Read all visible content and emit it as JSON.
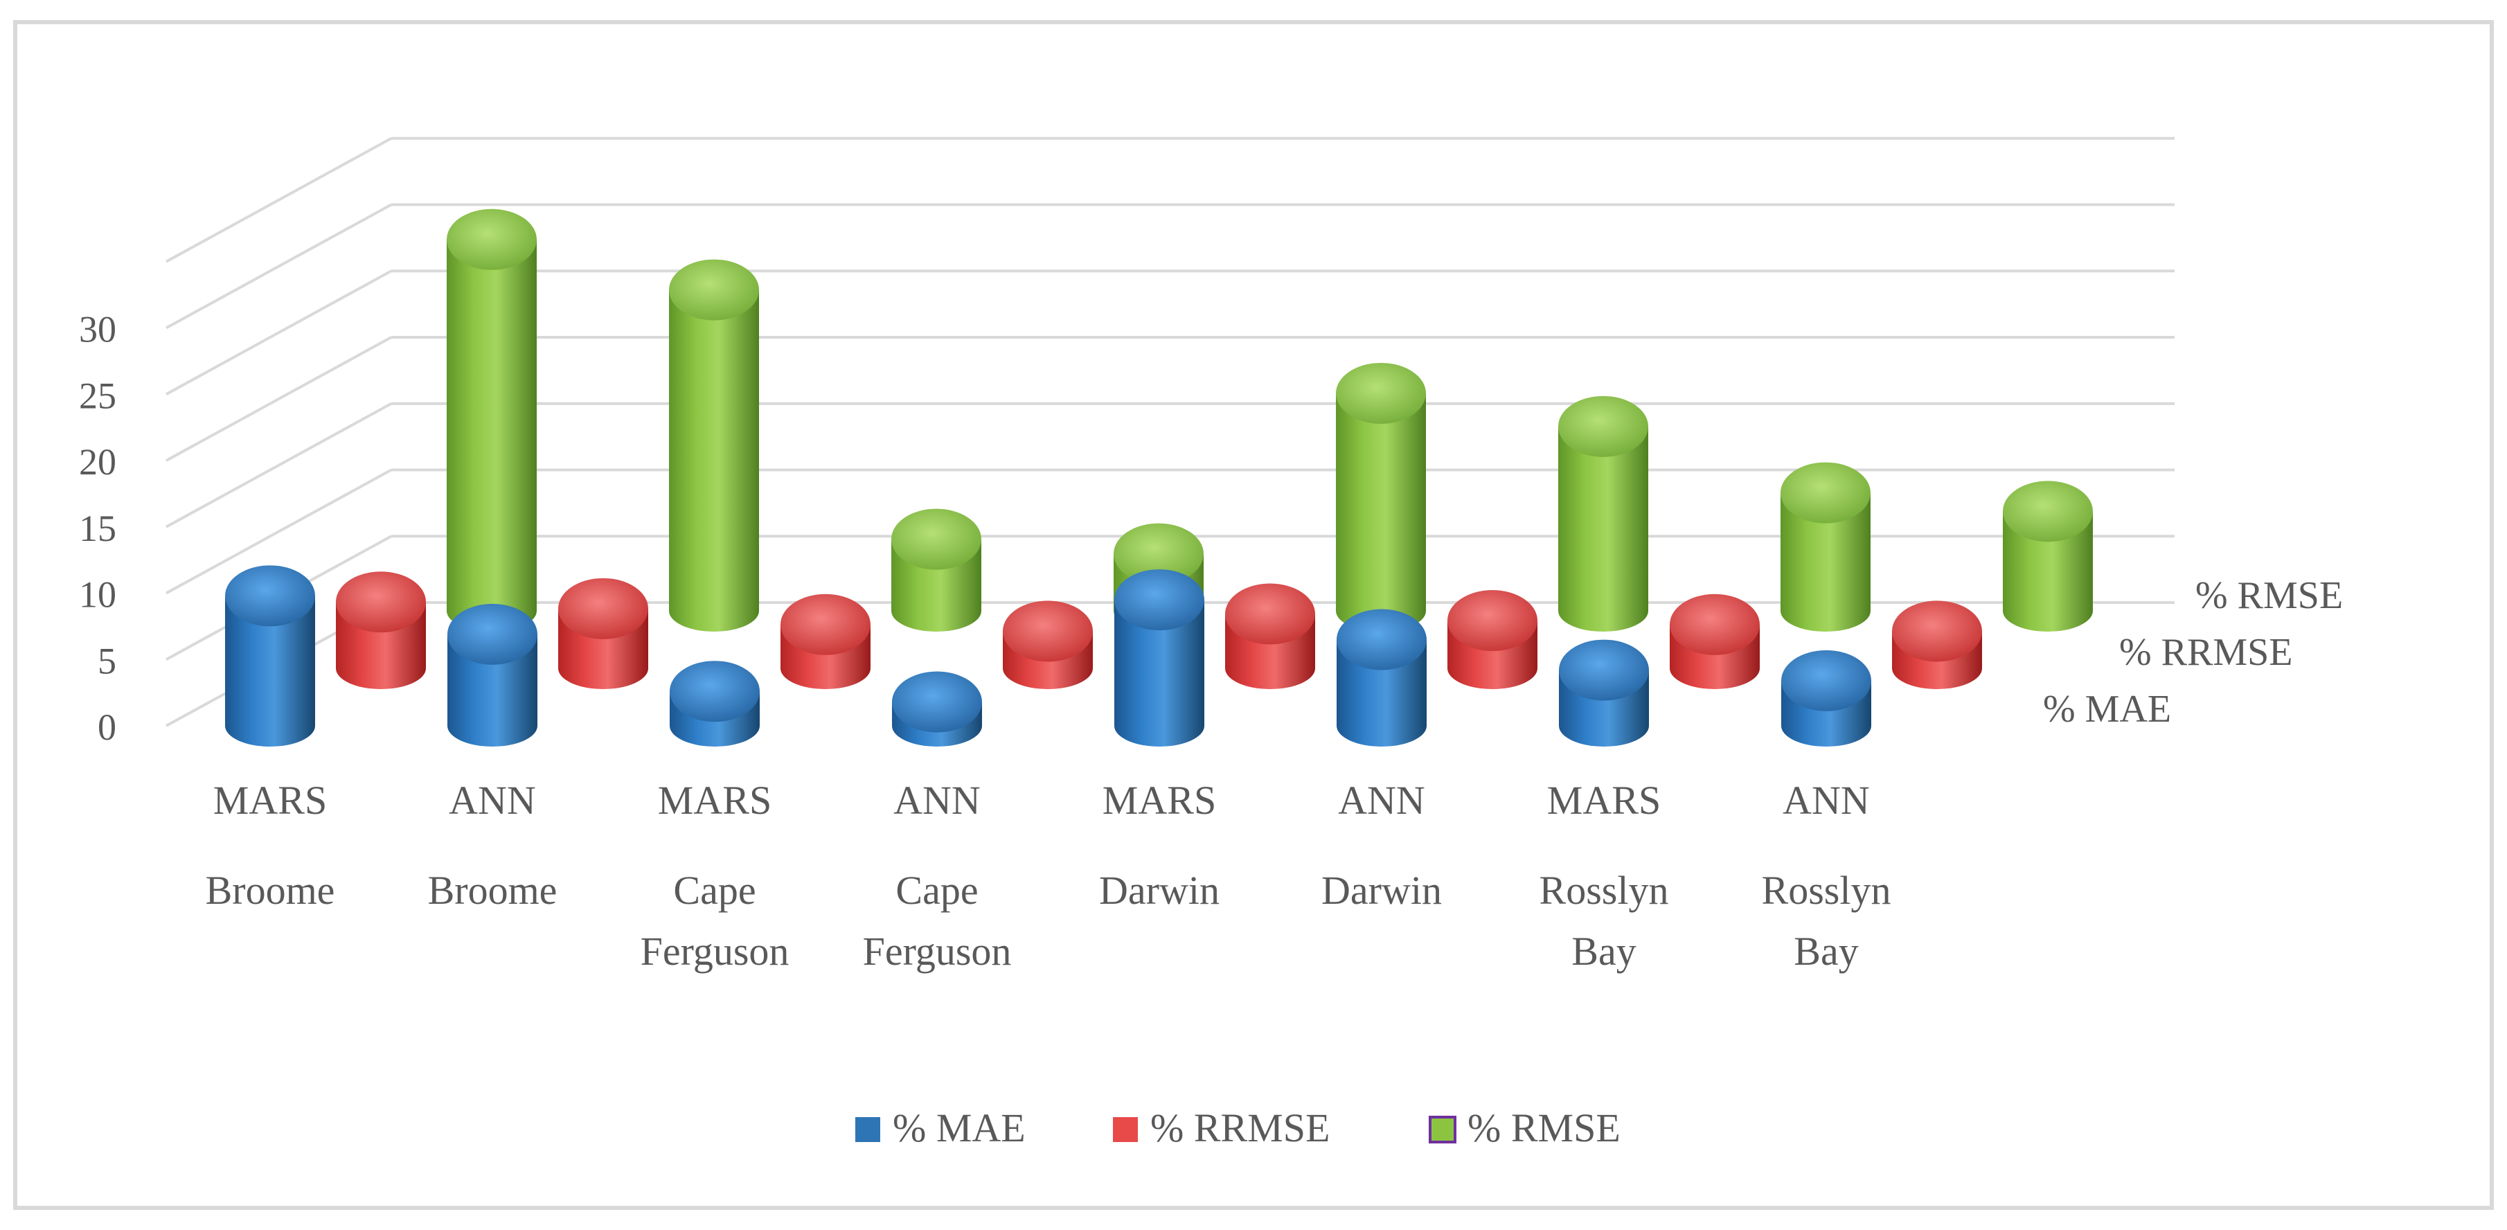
{
  "chart_data": {
    "type": "bar",
    "title": "",
    "xlabel": "",
    "ylabel": "",
    "ylim": [
      0,
      35
    ],
    "yticks": [
      0,
      5,
      10,
      15,
      20,
      25,
      30
    ],
    "grid": true,
    "legend_position": "bottom",
    "categories": [
      {
        "model": "MARS",
        "site": [
          "Broome"
        ]
      },
      {
        "model": "ANN",
        "site": [
          "Broome"
        ]
      },
      {
        "model": "MARS",
        "site": [
          "Cape",
          "Ferguson"
        ]
      },
      {
        "model": "ANN",
        "site": [
          "Cape",
          "Ferguson"
        ]
      },
      {
        "model": "MARS",
        "site": [
          "Darwin"
        ]
      },
      {
        "model": "ANN",
        "site": [
          "Darwin"
        ]
      },
      {
        "model": "MARS",
        "site": [
          "Rosslyn",
          "Bay"
        ]
      },
      {
        "model": "ANN",
        "site": [
          "Rosslyn",
          "Bay"
        ]
      }
    ],
    "series": [
      {
        "name": "% MAE",
        "color": "#2E75B6",
        "values": [
          9.8,
          6.9,
          2.6,
          1.8,
          9.5,
          6.5,
          4.2,
          3.4
        ]
      },
      {
        "name": "% RRMSE",
        "color": "#E84A4A",
        "values": [
          5.0,
          4.5,
          3.3,
          2.8,
          4.1,
          3.6,
          3.3,
          2.8
        ]
      },
      {
        "name": "% RMSE",
        "color": "#8CC442",
        "values": [
          28.0,
          24.2,
          5.4,
          4.3,
          16.4,
          13.9,
          8.9,
          7.5
        ]
      }
    ]
  }
}
